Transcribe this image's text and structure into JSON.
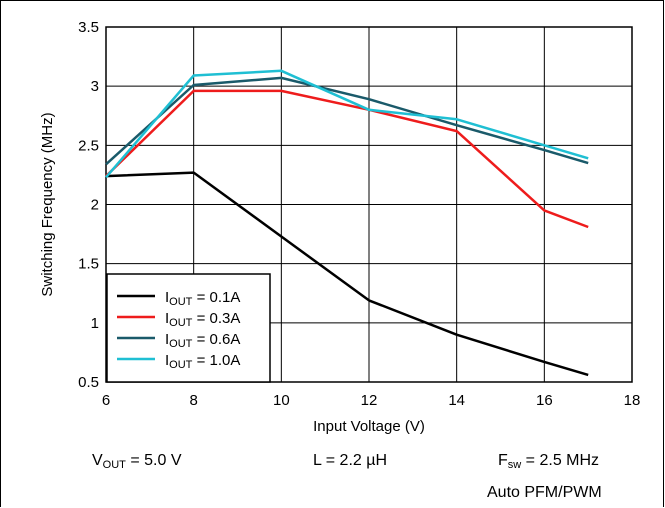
{
  "chart_data": {
    "type": "line",
    "xlabel": "Input Voltage (V)",
    "ylabel": "Switching Frequency (MHz)",
    "xlim": [
      6,
      18
    ],
    "ylim": [
      0.5,
      3.5
    ],
    "x_ticks": [
      6,
      8,
      10,
      12,
      14,
      16,
      18
    ],
    "y_ticks": [
      0.5,
      1,
      1.5,
      2,
      2.5,
      3,
      3.5
    ],
    "grid": true,
    "legend_position": "bottom-left",
    "series": [
      {
        "name_main": "I",
        "name_sub": "OUT",
        "name_rest": " = 0.1A",
        "color": "#000000",
        "x": [
          6,
          8,
          10,
          12,
          14,
          16,
          17
        ],
        "y": [
          2.24,
          2.27,
          1.73,
          1.19,
          0.9,
          0.67,
          0.56
        ]
      },
      {
        "name_main": "I",
        "name_sub": "OUT",
        "name_rest": " = 0.3A",
        "color": "#ee1c1c",
        "x": [
          6,
          8,
          10,
          12,
          14,
          16,
          17
        ],
        "y": [
          2.24,
          2.96,
          2.96,
          2.8,
          2.62,
          1.95,
          1.81
        ]
      },
      {
        "name_main": "I",
        "name_sub": "OUT",
        "name_rest": " = 0.6A",
        "color": "#1a5a6a",
        "x": [
          6,
          8,
          10,
          12,
          14,
          16,
          17
        ],
        "y": [
          2.34,
          3.01,
          3.07,
          2.89,
          2.67,
          2.46,
          2.35
        ]
      },
      {
        "name_main": "I",
        "name_sub": "OUT",
        "name_rest": " = 1.0A",
        "color": "#1fbfd3",
        "x": [
          6,
          8,
          10,
          12,
          14,
          16,
          17
        ],
        "y": [
          2.23,
          3.09,
          3.13,
          2.8,
          2.72,
          2.5,
          2.39
        ]
      }
    ]
  },
  "conditions": {
    "vout": {
      "main": "V",
      "sub": "OUT",
      "rest": " = 5.0 V"
    },
    "inductor": "L = 2.2 µH",
    "fsw": {
      "main": "F",
      "sub": "sw",
      "rest": " = 2.5 MHz"
    },
    "mode": "Auto PFM/PWM"
  }
}
